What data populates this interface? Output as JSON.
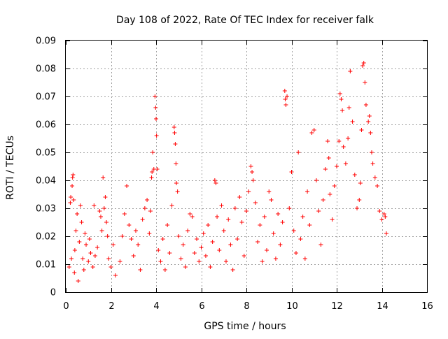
{
  "chart_data": {
    "type": "scatter",
    "title": "Day 108 of 2022, Rate Of TEC Index for receiver falk",
    "xlabel": "GPS time / hours",
    "ylabel": "ROTI / TECUs",
    "xlim": [
      0,
      16
    ],
    "ylim": [
      0,
      0.09
    ],
    "xticks": [
      0,
      2,
      4,
      6,
      8,
      10,
      12,
      14,
      16
    ],
    "xtick_labels": [
      "0",
      "2",
      "4",
      "6",
      "8",
      "10",
      "12",
      "14",
      "16"
    ],
    "yticks": [
      0,
      0.01,
      0.02,
      0.03,
      0.04,
      0.05,
      0.06,
      0.07,
      0.08,
      0.09
    ],
    "ytick_labels": [
      "0",
      "0.01",
      "0.02",
      "0.03",
      "0.04",
      "0.05",
      "0.06",
      "0.07",
      "0.08",
      "0.09"
    ],
    "grid": true,
    "marker": "plus",
    "marker_color": "#ff0000",
    "series": [
      {
        "points": [
          [
            0.15,
            0.009
          ],
          [
            0.2,
            0.032
          ],
          [
            0.22,
            0.034
          ],
          [
            0.25,
            0.012
          ],
          [
            0.28,
            0.038
          ],
          [
            0.3,
            0.041
          ],
          [
            0.32,
            0.042
          ],
          [
            0.35,
            0.033
          ],
          [
            0.38,
            0.007
          ],
          [
            0.4,
            0.015
          ],
          [
            0.45,
            0.022
          ],
          [
            0.5,
            0.028
          ],
          [
            0.55,
            0.004
          ],
          [
            0.6,
            0.018
          ],
          [
            0.65,
            0.031
          ],
          [
            0.7,
            0.025
          ],
          [
            0.75,
            0.012
          ],
          [
            0.8,
            0.008
          ],
          [
            0.85,
            0.021
          ],
          [
            0.9,
            0.017
          ],
          [
            1.0,
            0.011
          ],
          [
            1.05,
            0.019
          ],
          [
            1.1,
            0.014
          ],
          [
            1.2,
            0.009
          ],
          [
            1.25,
            0.031
          ],
          [
            1.3,
            0.013
          ],
          [
            1.4,
            0.016
          ],
          [
            1.5,
            0.029
          ],
          [
            1.55,
            0.027
          ],
          [
            1.6,
            0.022
          ],
          [
            1.65,
            0.041
          ],
          [
            1.7,
            0.03
          ],
          [
            1.75,
            0.034
          ],
          [
            1.8,
            0.025
          ],
          [
            1.85,
            0.02
          ],
          [
            1.9,
            0.012
          ],
          [
            2.0,
            0.009
          ],
          [
            2.1,
            0.017
          ],
          [
            2.2,
            0.006
          ],
          [
            2.4,
            0.011
          ],
          [
            2.5,
            0.02
          ],
          [
            2.6,
            0.028
          ],
          [
            2.7,
            0.038
          ],
          [
            2.8,
            0.024
          ],
          [
            2.9,
            0.019
          ],
          [
            3.0,
            0.013
          ],
          [
            3.1,
            0.022
          ],
          [
            3.2,
            0.017
          ],
          [
            3.3,
            0.008
          ],
          [
            3.4,
            0.026
          ],
          [
            3.5,
            0.03
          ],
          [
            3.6,
            0.033
          ],
          [
            3.7,
            0.021
          ],
          [
            3.75,
            0.029
          ],
          [
            3.8,
            0.041
          ],
          [
            3.82,
            0.043
          ],
          [
            3.85,
            0.05
          ],
          [
            3.9,
            0.044
          ],
          [
            3.95,
            0.07
          ],
          [
            3.98,
            0.066
          ],
          [
            4.0,
            0.062
          ],
          [
            4.02,
            0.056
          ],
          [
            4.05,
            0.044
          ],
          [
            4.1,
            0.015
          ],
          [
            4.2,
            0.011
          ],
          [
            4.3,
            0.019
          ],
          [
            4.4,
            0.008
          ],
          [
            4.5,
            0.024
          ],
          [
            4.6,
            0.014
          ],
          [
            4.7,
            0.031
          ],
          [
            4.8,
            0.059
          ],
          [
            4.82,
            0.057
          ],
          [
            4.85,
            0.053
          ],
          [
            4.88,
            0.046
          ],
          [
            4.9,
            0.039
          ],
          [
            4.95,
            0.036
          ],
          [
            5.0,
            0.02
          ],
          [
            5.1,
            0.012
          ],
          [
            5.2,
            0.017
          ],
          [
            5.3,
            0.009
          ],
          [
            5.4,
            0.022
          ],
          [
            5.5,
            0.028
          ],
          [
            5.6,
            0.027
          ],
          [
            5.7,
            0.014
          ],
          [
            5.8,
            0.019
          ],
          [
            5.9,
            0.011
          ],
          [
            6.0,
            0.016
          ],
          [
            6.1,
            0.021
          ],
          [
            6.2,
            0.013
          ],
          [
            6.3,
            0.024
          ],
          [
            6.4,
            0.009
          ],
          [
            6.5,
            0.018
          ],
          [
            6.6,
            0.04
          ],
          [
            6.65,
            0.039
          ],
          [
            6.7,
            0.027
          ],
          [
            6.8,
            0.015
          ],
          [
            6.9,
            0.031
          ],
          [
            7.0,
            0.022
          ],
          [
            7.1,
            0.011
          ],
          [
            7.2,
            0.026
          ],
          [
            7.3,
            0.017
          ],
          [
            7.4,
            0.008
          ],
          [
            7.5,
            0.03
          ],
          [
            7.6,
            0.019
          ],
          [
            7.7,
            0.034
          ],
          [
            7.8,
            0.025
          ],
          [
            7.9,
            0.013
          ],
          [
            8.0,
            0.029
          ],
          [
            8.1,
            0.036
          ],
          [
            8.2,
            0.045
          ],
          [
            8.25,
            0.043
          ],
          [
            8.3,
            0.04
          ],
          [
            8.4,
            0.032
          ],
          [
            8.5,
            0.018
          ],
          [
            8.6,
            0.024
          ],
          [
            8.7,
            0.011
          ],
          [
            8.8,
            0.027
          ],
          [
            8.9,
            0.015
          ],
          [
            9.0,
            0.036
          ],
          [
            9.1,
            0.033
          ],
          [
            9.2,
            0.021
          ],
          [
            9.3,
            0.012
          ],
          [
            9.4,
            0.028
          ],
          [
            9.5,
            0.017
          ],
          [
            9.6,
            0.025
          ],
          [
            9.7,
            0.072
          ],
          [
            9.72,
            0.069
          ],
          [
            9.75,
            0.067
          ],
          [
            9.8,
            0.07
          ],
          [
            9.9,
            0.03
          ],
          [
            10.0,
            0.043
          ],
          [
            10.1,
            0.022
          ],
          [
            10.2,
            0.014
          ],
          [
            10.3,
            0.05
          ],
          [
            10.4,
            0.019
          ],
          [
            10.5,
            0.027
          ],
          [
            10.6,
            0.012
          ],
          [
            10.7,
            0.036
          ],
          [
            10.8,
            0.024
          ],
          [
            10.9,
            0.057
          ],
          [
            11.0,
            0.058
          ],
          [
            11.1,
            0.04
          ],
          [
            11.2,
            0.029
          ],
          [
            11.3,
            0.017
          ],
          [
            11.4,
            0.033
          ],
          [
            11.5,
            0.044
          ],
          [
            11.6,
            0.054
          ],
          [
            11.65,
            0.048
          ],
          [
            11.7,
            0.035
          ],
          [
            11.8,
            0.026
          ],
          [
            11.9,
            0.038
          ],
          [
            12.0,
            0.045
          ],
          [
            12.1,
            0.054
          ],
          [
            12.15,
            0.071
          ],
          [
            12.2,
            0.069
          ],
          [
            12.25,
            0.065
          ],
          [
            12.3,
            0.052
          ],
          [
            12.4,
            0.046
          ],
          [
            12.5,
            0.055
          ],
          [
            12.55,
            0.066
          ],
          [
            12.6,
            0.079
          ],
          [
            12.7,
            0.061
          ],
          [
            12.8,
            0.042
          ],
          [
            12.9,
            0.03
          ],
          [
            13.0,
            0.033
          ],
          [
            13.05,
            0.039
          ],
          [
            13.1,
            0.058
          ],
          [
            13.15,
            0.081
          ],
          [
            13.2,
            0.082
          ],
          [
            13.25,
            0.075
          ],
          [
            13.3,
            0.067
          ],
          [
            13.4,
            0.061
          ],
          [
            13.45,
            0.063
          ],
          [
            13.5,
            0.057
          ],
          [
            13.55,
            0.05
          ],
          [
            13.6,
            0.046
          ],
          [
            13.7,
            0.041
          ],
          [
            13.8,
            0.038
          ],
          [
            13.9,
            0.029
          ],
          [
            14.0,
            0.026
          ],
          [
            14.1,
            0.028
          ],
          [
            14.15,
            0.027
          ],
          [
            14.2,
            0.021
          ]
        ]
      }
    ]
  }
}
